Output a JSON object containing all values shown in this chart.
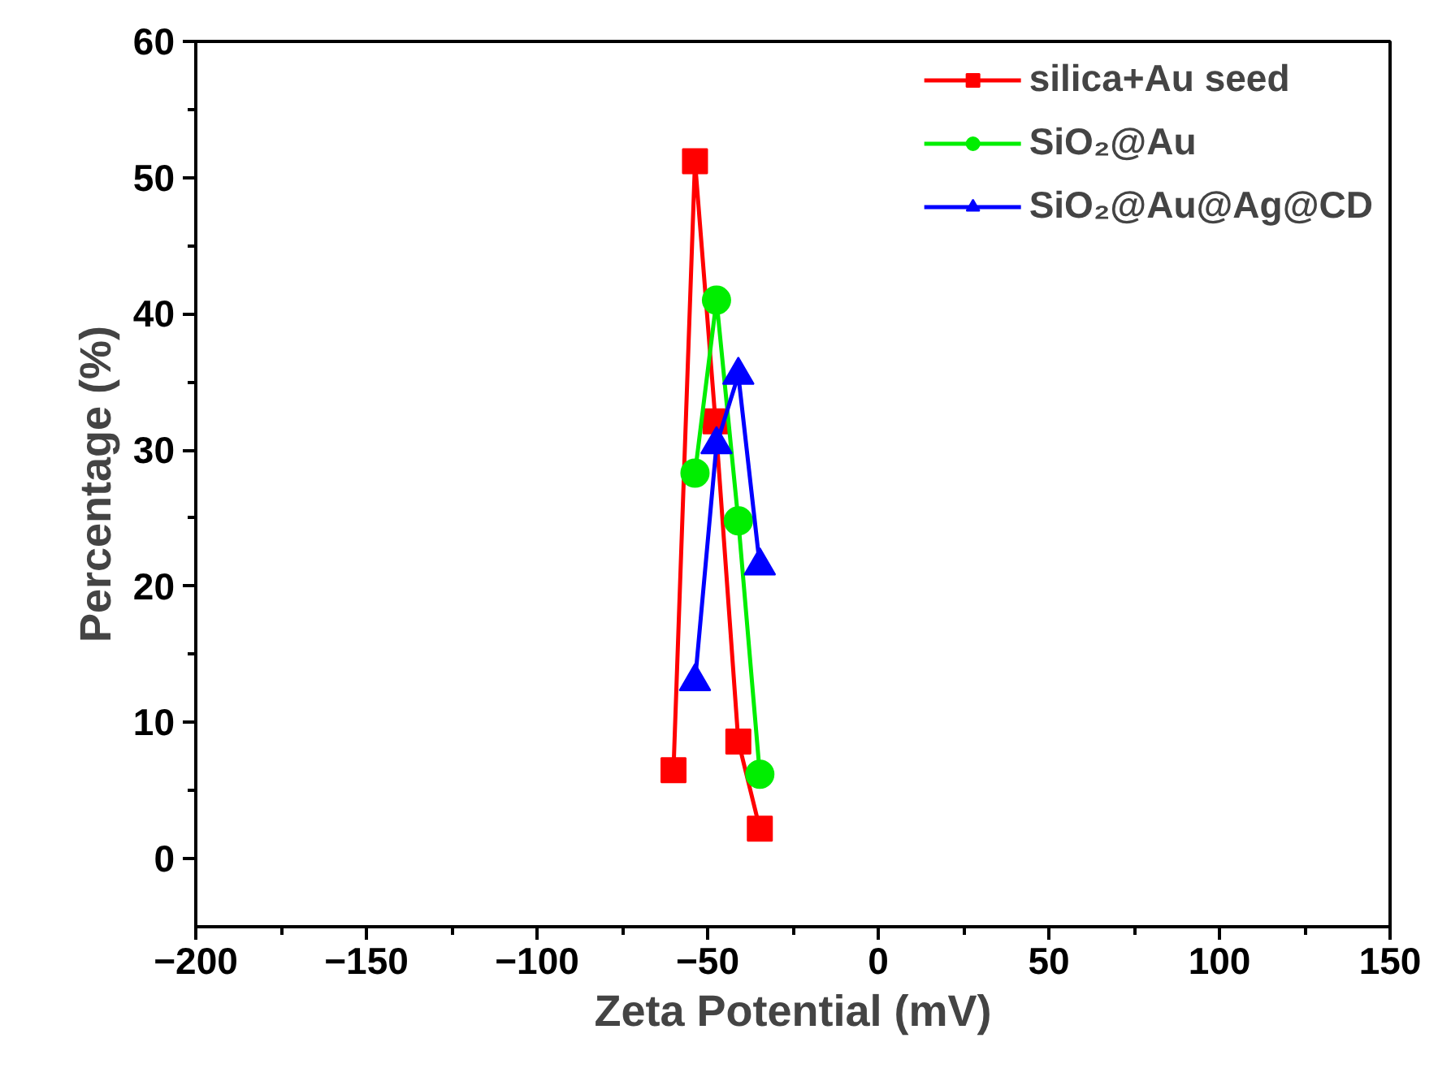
{
  "chart_data": {
    "type": "line",
    "xlabel": "Zeta Potential (mV)",
    "ylabel": "Percentage (%)",
    "xlim": [
      -200,
      150
    ],
    "xticks": [
      -200,
      -150,
      -100,
      -50,
      0,
      50,
      100,
      150
    ],
    "ylim": [
      -5,
      60
    ],
    "yticks": [
      0,
      10,
      20,
      30,
      40,
      50,
      60
    ],
    "grid": false,
    "legend": "top right",
    "line_style": "solid",
    "series": [
      {
        "name": "silica+Au seed",
        "color": "#ff0000",
        "marker": "square",
        "x": [
          -60,
          -53.7,
          -47.7,
          -41,
          -34.7
        ],
        "values": [
          6.5,
          51.2,
          32.1,
          8.6,
          2.2
        ]
      },
      {
        "name": "SiO₂@Au",
        "color": "#00ee00",
        "marker": "circle",
        "x": [
          -53.7,
          -47.4,
          -41,
          -34.7
        ],
        "values": [
          28.3,
          41.0,
          24.8,
          6.2
        ]
      },
      {
        "name": "SiO₂@Au@Ag@CD",
        "color": "#0000ff",
        "marker": "triangle",
        "x": [
          -53.7,
          -47.4,
          -41,
          -34.7
        ],
        "values": [
          13.0,
          30.4,
          35.5,
          21.5
        ]
      }
    ]
  }
}
